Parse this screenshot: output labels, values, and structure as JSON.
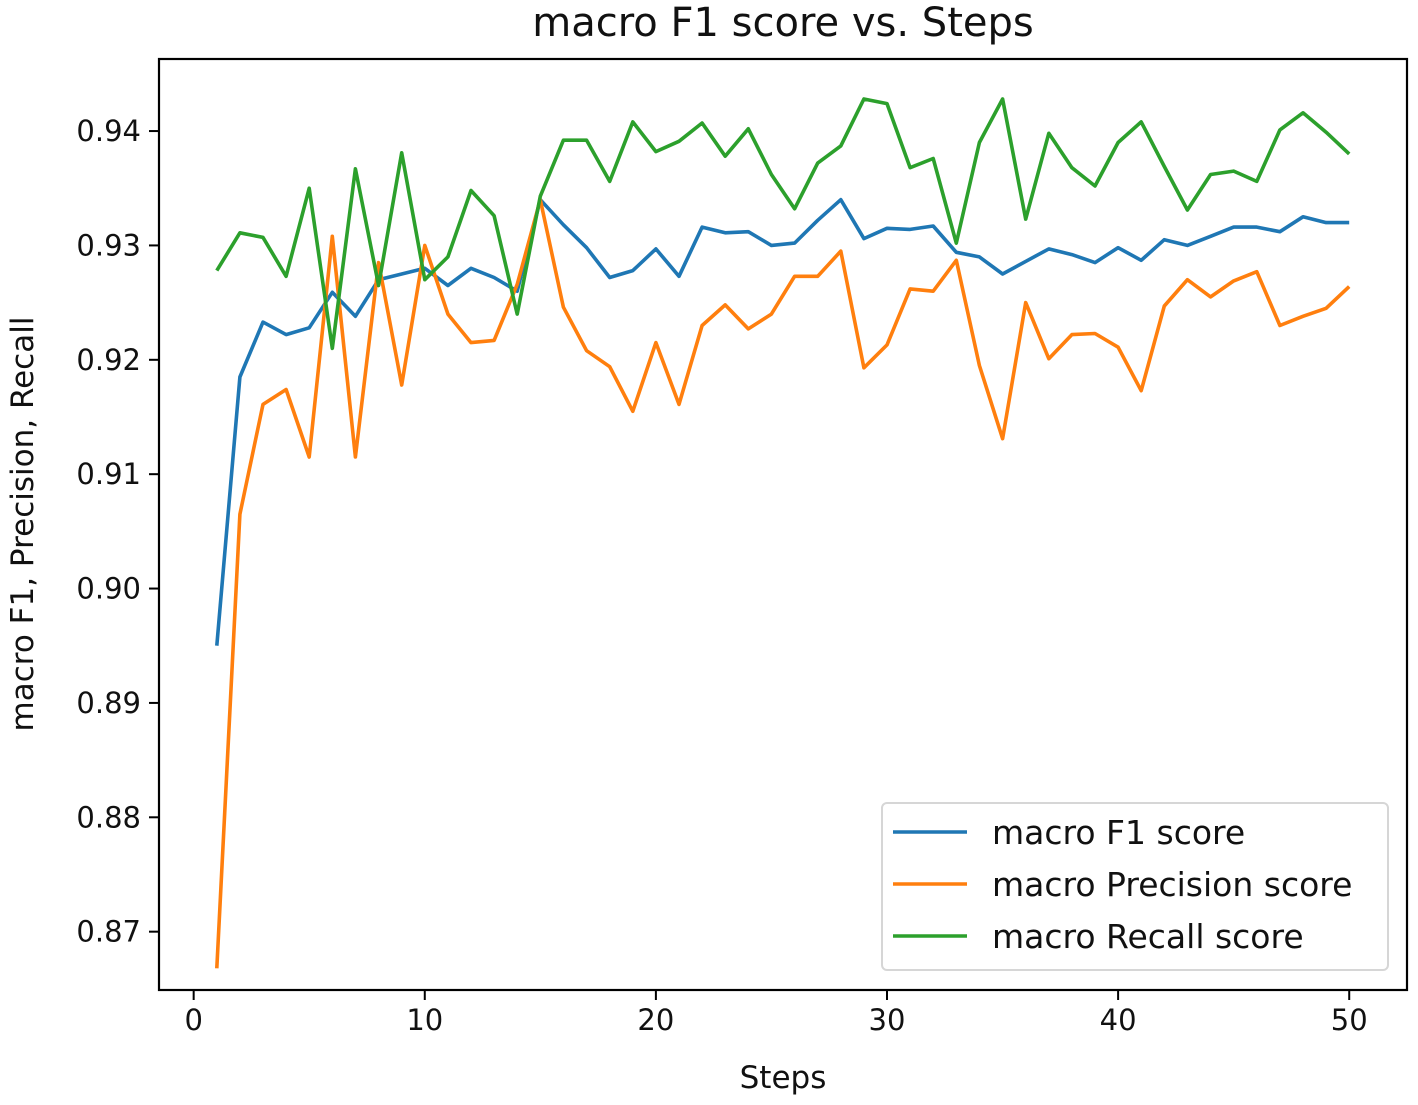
{
  "chart_data": {
    "type": "line",
    "title": "macro F1 score vs. Steps",
    "xlabel": "Steps",
    "ylabel": "macro F1, Precision, Recall",
    "xlim": [
      -1.5,
      52.5
    ],
    "ylim": [
      0.8649,
      0.9463
    ],
    "xticks": [
      0,
      10,
      20,
      30,
      40,
      50
    ],
    "yticks": [
      0.87,
      0.88,
      0.89,
      0.9,
      0.91,
      0.92,
      0.93,
      0.94
    ],
    "xtick_labels": [
      "0",
      "10",
      "20",
      "30",
      "40",
      "50"
    ],
    "ytick_labels": [
      "0.87",
      "0.88",
      "0.89",
      "0.90",
      "0.91",
      "0.92",
      "0.93",
      "0.94"
    ],
    "legend_position": "lower-right",
    "grid": false,
    "x": [
      1,
      2,
      3,
      4,
      5,
      6,
      7,
      8,
      9,
      10,
      11,
      12,
      13,
      14,
      15,
      16,
      17,
      18,
      19,
      20,
      21,
      22,
      23,
      24,
      25,
      26,
      27,
      28,
      29,
      30,
      31,
      32,
      33,
      34,
      35,
      36,
      37,
      38,
      39,
      40,
      41,
      42,
      43,
      44,
      45,
      46,
      47,
      48,
      49,
      50
    ],
    "series": [
      {
        "name": "macro F1 score",
        "color": "#1f77b4",
        "values": [
          0.895,
          0.9185,
          0.9233,
          0.9222,
          0.9228,
          0.9259,
          0.9238,
          0.927,
          0.9275,
          0.928,
          0.9265,
          0.928,
          0.9272,
          0.926,
          0.934,
          0.9318,
          0.9298,
          0.9272,
          0.9278,
          0.9297,
          0.9273,
          0.9316,
          0.9311,
          0.9312,
          0.93,
          0.9302,
          0.9322,
          0.934,
          0.9306,
          0.9315,
          0.9314,
          0.9317,
          0.9294,
          0.929,
          0.9275,
          0.9286,
          0.9297,
          0.9292,
          0.9285,
          0.9298,
          0.9287,
          0.9305,
          0.93,
          0.9308,
          0.9316,
          0.9316,
          0.9312,
          0.9325,
          0.932,
          0.932
        ]
      },
      {
        "name": "macro Precision score",
        "color": "#ff7f0e",
        "values": [
          0.8668,
          0.9065,
          0.9161,
          0.9174,
          0.9115,
          0.9308,
          0.9115,
          0.9285,
          0.9178,
          0.93,
          0.924,
          0.9215,
          0.9217,
          0.9266,
          0.934,
          0.9246,
          0.9208,
          0.9194,
          0.9155,
          0.9215,
          0.9161,
          0.923,
          0.9248,
          0.9227,
          0.924,
          0.9273,
          0.9273,
          0.9295,
          0.9193,
          0.9213,
          0.9262,
          0.926,
          0.9287,
          0.9195,
          0.9131,
          0.925,
          0.9201,
          0.9222,
          0.9223,
          0.9211,
          0.9173,
          0.9247,
          0.927,
          0.9255,
          0.9269,
          0.9277,
          0.923,
          0.9238,
          0.9245,
          0.9264
        ]
      },
      {
        "name": "macro Recall score",
        "color": "#2ca02c",
        "values": [
          0.9278,
          0.9311,
          0.9307,
          0.9273,
          0.935,
          0.921,
          0.9367,
          0.9265,
          0.9381,
          0.927,
          0.929,
          0.9348,
          0.9326,
          0.924,
          0.9343,
          0.9392,
          0.9392,
          0.9356,
          0.9408,
          0.9382,
          0.9391,
          0.9407,
          0.9378,
          0.9402,
          0.9362,
          0.9332,
          0.9372,
          0.9387,
          0.9428,
          0.9424,
          0.9368,
          0.9376,
          0.9302,
          0.939,
          0.9428,
          0.9323,
          0.9398,
          0.9368,
          0.9352,
          0.939,
          0.9408,
          0.9369,
          0.9331,
          0.9362,
          0.9365,
          0.9356,
          0.9401,
          0.9416,
          0.9399,
          0.938
        ]
      }
    ]
  }
}
